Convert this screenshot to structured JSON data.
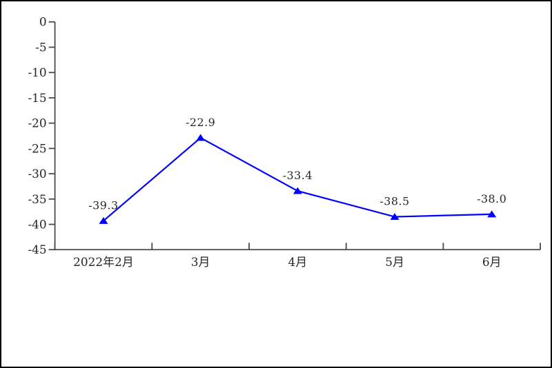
{
  "chart_data": {
    "type": "line",
    "categories": [
      "2022年2月",
      "3月",
      "4月",
      "5月",
      "6月"
    ],
    "series": [
      {
        "values": [
          -39.3,
          -22.9,
          -33.4,
          -38.5,
          -38.0
        ],
        "point_labels": [
          "-39.3",
          "-22.9",
          "-33.4",
          "-38.5",
          "-38.0"
        ],
        "color": "#0000ff",
        "marker": "triangle-up"
      }
    ],
    "xlabel": "",
    "ylabel": "",
    "ylim": [
      -45,
      0
    ],
    "y_ticks": [
      0,
      -5,
      -10,
      -15,
      -20,
      -25,
      -30,
      -35,
      -40,
      -45
    ],
    "y_tick_labels": [
      "0",
      "-5",
      "-10",
      "-15",
      "-20",
      "-25",
      "-30",
      "-35",
      "-40",
      "-45"
    ],
    "grid": false,
    "legend": false,
    "axis_color": "#474747",
    "text_color": "#262626",
    "background": "#ffffff",
    "frame_border_color": "#000000"
  }
}
